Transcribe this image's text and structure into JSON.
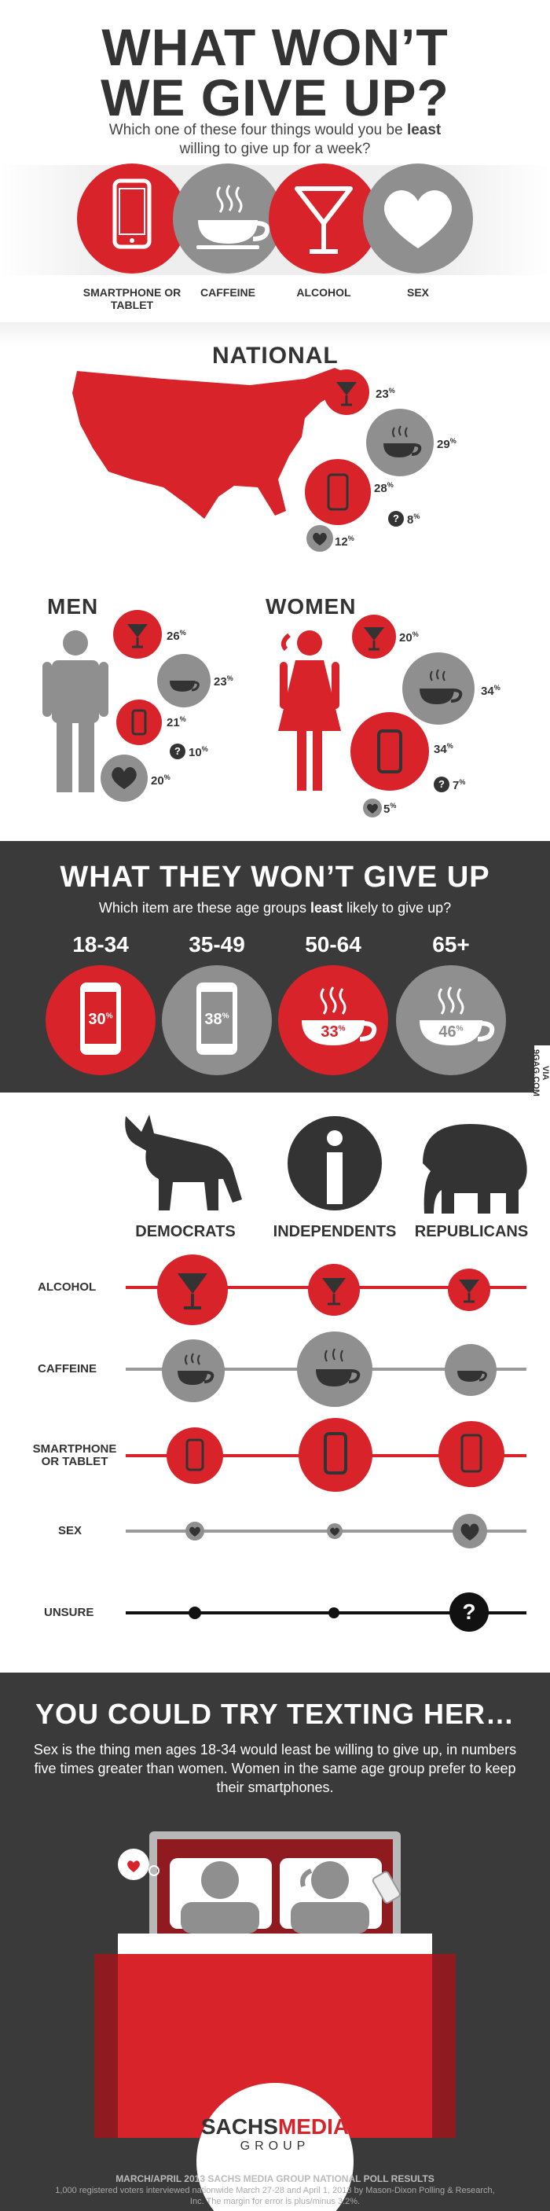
{
  "hero": {
    "title_line1": "WHAT WON’T",
    "title_line2": "WE GIVE UP?",
    "subtitle_pre": "Which one of these four things would you be ",
    "subtitle_bold": "least",
    "subtitle_post": " willing to give up for a week?"
  },
  "items": [
    {
      "label": "SMARTPHONE OR TABLET",
      "icon": "smartphone-icon",
      "color": "#d8232a"
    },
    {
      "label": "CAFFEINE",
      "icon": "coffee-cup-icon",
      "color": "#8f8f8f"
    },
    {
      "label": "ALCOHOL",
      "icon": "martini-glass-icon",
      "color": "#d8232a"
    },
    {
      "label": "SEX",
      "icon": "heart-icon",
      "color": "#8f8f8f"
    }
  ],
  "national": {
    "title": "NATIONAL",
    "alcohol": "23",
    "caffeine": "29",
    "smartphone": "28",
    "unsure": "8",
    "sex": "12"
  },
  "men": {
    "title": "MEN",
    "alcohol": "26",
    "caffeine": "23",
    "smartphone": "21",
    "unsure": "10",
    "sex": "20"
  },
  "women": {
    "title": "WOMEN",
    "alcohol": "20",
    "caffeine": "34",
    "smartphone": "34",
    "unsure": "7",
    "sex": "5"
  },
  "age": {
    "title": "WHAT THEY WON’T GIVE UP",
    "subtitle_pre": "Which item are these age groups ",
    "subtitle_bold": "least",
    "subtitle_post": " likely to give up?",
    "groups": [
      {
        "label": "18-34",
        "value": "30",
        "item": "smartphone-icon",
        "color": "#d8232a"
      },
      {
        "label": "35-49",
        "value": "38",
        "item": "smartphone-icon",
        "color": "#8f8f8f"
      },
      {
        "label": "50-64",
        "value": "33",
        "item": "coffee-cup-icon",
        "color": "#d8232a"
      },
      {
        "label": "65+",
        "value": "46",
        "item": "coffee-cup-icon",
        "color": "#8f8f8f"
      }
    ]
  },
  "watermark": "VIA 9GAG.COM",
  "politics": {
    "parties": [
      "DEMOCRATS",
      "INDEPENDENTS",
      "REPUBLICANS"
    ],
    "rows": [
      {
        "label": "ALCOHOL",
        "icon": "martini-glass-icon",
        "color": "#d8232a"
      },
      {
        "label": "CAFFEINE",
        "icon": "coffee-cup-icon",
        "color": "#8f8f8f"
      },
      {
        "label": "SMARTPHONE OR TABLET",
        "icon": "smartphone-icon",
        "color": "#d8232a"
      },
      {
        "label": "SEX",
        "icon": "heart-icon",
        "color": "#8f8f8f"
      },
      {
        "label": "UNSURE",
        "icon": "question-icon",
        "color": "#111111"
      }
    ]
  },
  "texting": {
    "title": "YOU COULD TRY TEXTING HER…",
    "body": "Sex is the thing men ages 18-34 would least be willing to give up, in numbers five times greater than women. Women in the same age group prefer to keep their smartphones."
  },
  "logo": {
    "name_a": "SACHS",
    "name_b": "MEDIA",
    "group": "GROUP"
  },
  "footer": {
    "title": "MARCH/APRIL 2013 SACHS MEDIA GROUP NATIONAL POLL RESULTS",
    "body": "1,000 registered voters interviewed nationwide March 27-28 and April 1, 2013 by Mason-Dixon Polling & Research, Inc. The margin for error is plus/minus 3.2%."
  }
}
